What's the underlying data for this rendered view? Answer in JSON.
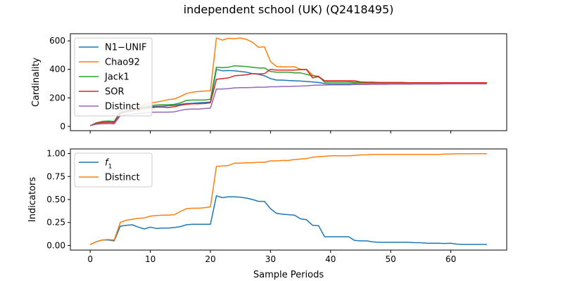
{
  "figure": {
    "title": "independent school (UK) (Q2418495)"
  },
  "chart_data": [
    {
      "type": "line",
      "ylabel": "Cardinality",
      "xlabel": "",
      "xlim": [
        -3.3,
        69.3
      ],
      "ylim": [
        -30,
        650
      ],
      "xticks": [
        0,
        10,
        20,
        30,
        40,
        50,
        60
      ],
      "yticks": [
        0,
        200,
        400,
        600
      ],
      "show_xtick_labels": false,
      "grid": false,
      "legend": "top-left",
      "series": [
        {
          "name": "N1−UNIF",
          "color": "#1f77b4",
          "x": [
            0,
            1,
            2,
            3,
            4,
            5,
            6,
            7,
            8,
            9,
            10,
            11,
            12,
            13,
            14,
            15,
            16,
            17,
            18,
            19,
            20,
            21,
            22,
            23,
            24,
            25,
            26,
            27,
            28,
            29,
            30,
            31,
            32,
            33,
            34,
            35,
            36,
            37,
            38,
            39,
            40,
            41,
            42,
            43,
            44,
            45,
            46,
            47,
            48,
            49,
            50,
            51,
            52,
            53,
            54,
            55,
            56,
            57,
            58,
            59,
            60,
            61,
            62,
            63,
            64,
            65,
            66
          ],
          "values": [
            5,
            18,
            20,
            22,
            20,
            90,
            100,
            108,
            120,
            130,
            138,
            140,
            142,
            145,
            148,
            155,
            160,
            162,
            165,
            168,
            170,
            400,
            390,
            392,
            390,
            385,
            380,
            370,
            365,
            355,
            335,
            325,
            325,
            322,
            320,
            318,
            315,
            312,
            308,
            300,
            298,
            298,
            298,
            298,
            300,
            300,
            300,
            300,
            300,
            300,
            300,
            300,
            300,
            300,
            300,
            300,
            300,
            300,
            300,
            300,
            300,
            300,
            300,
            300,
            300,
            300,
            300
          ]
        },
        {
          "name": "Chao92",
          "color": "#ff7f0e",
          "x": [
            0,
            1,
            2,
            3,
            4,
            5,
            6,
            7,
            8,
            9,
            10,
            11,
            12,
            13,
            14,
            15,
            16,
            17,
            18,
            19,
            20,
            21,
            22,
            23,
            24,
            25,
            26,
            27,
            28,
            29,
            30,
            31,
            32,
            33,
            34,
            35,
            36,
            37,
            38,
            39,
            40,
            41,
            42,
            43,
            44,
            45,
            46,
            47,
            48,
            49,
            50,
            51,
            52,
            53,
            54,
            55,
            56,
            57,
            58,
            59,
            60,
            61,
            62,
            63,
            64,
            65,
            66
          ],
          "values": [
            5,
            20,
            25,
            30,
            30,
            100,
            110,
            120,
            135,
            150,
            162,
            170,
            178,
            188,
            192,
            210,
            230,
            240,
            245,
            248,
            250,
            620,
            605,
            618,
            615,
            620,
            610,
            590,
            555,
            558,
            455,
            420,
            418,
            418,
            418,
            400,
            400,
            360,
            345,
            320,
            320,
            320,
            320,
            318,
            305,
            302,
            300,
            300,
            300,
            300,
            300,
            300,
            300,
            300,
            300,
            300,
            300,
            300,
            300,
            300,
            300,
            300,
            300,
            300,
            300,
            300,
            300
          ]
        },
        {
          "name": "Jack1",
          "color": "#2ca02c",
          "x": [
            0,
            1,
            2,
            3,
            4,
            5,
            6,
            7,
            8,
            9,
            10,
            11,
            12,
            13,
            14,
            15,
            16,
            17,
            18,
            19,
            20,
            21,
            22,
            23,
            24,
            25,
            26,
            27,
            28,
            29,
            30,
            31,
            32,
            33,
            34,
            35,
            36,
            37,
            38,
            39,
            40,
            41,
            42,
            43,
            44,
            45,
            46,
            47,
            48,
            49,
            50,
            51,
            52,
            53,
            54,
            55,
            56,
            57,
            58,
            59,
            60,
            61,
            62,
            63,
            64,
            65,
            66
          ],
          "values": [
            5,
            25,
            35,
            38,
            35,
            100,
            110,
            118,
            128,
            138,
            145,
            150,
            152,
            152,
            155,
            165,
            182,
            185,
            185,
            185,
            190,
            415,
            412,
            415,
            425,
            423,
            420,
            415,
            410,
            410,
            385,
            380,
            380,
            380,
            375,
            375,
            365,
            355,
            352,
            310,
            310,
            310,
            310,
            310,
            310,
            308,
            306,
            305,
            305,
            305,
            305,
            305,
            305,
            305,
            305,
            305,
            305,
            305,
            305,
            305,
            305,
            305,
            305,
            305,
            305,
            305,
            305
          ]
        },
        {
          "name": "SOR",
          "color": "#d62728",
          "x": [
            0,
            1,
            2,
            3,
            4,
            5,
            6,
            7,
            8,
            9,
            10,
            11,
            12,
            13,
            14,
            15,
            16,
            17,
            18,
            19,
            20,
            21,
            22,
            23,
            24,
            25,
            26,
            27,
            28,
            29,
            30,
            31,
            32,
            33,
            34,
            35,
            36,
            37,
            38,
            39,
            40,
            41,
            42,
            43,
            44,
            45,
            46,
            47,
            48,
            49,
            50,
            51,
            52,
            53,
            54,
            55,
            56,
            57,
            58,
            59,
            60,
            61,
            62,
            63,
            64,
            65,
            66
          ],
          "values": [
            5,
            22,
            28,
            30,
            28,
            95,
            105,
            112,
            118,
            125,
            130,
            135,
            135,
            132,
            138,
            148,
            155,
            158,
            158,
            160,
            165,
            330,
            335,
            340,
            355,
            358,
            362,
            370,
            368,
            370,
            400,
            395,
            395,
            395,
            395,
            398,
            398,
            340,
            350,
            320,
            320,
            320,
            320,
            320,
            320,
            312,
            310,
            310,
            308,
            308,
            308,
            308,
            308,
            306,
            306,
            306,
            306,
            306,
            306,
            306,
            306,
            306,
            306,
            306,
            306,
            306,
            306
          ]
        },
        {
          "name": "Distinct",
          "color": "#9467bd",
          "x": [
            0,
            1,
            2,
            3,
            4,
            5,
            6,
            7,
            8,
            9,
            10,
            11,
            12,
            13,
            14,
            15,
            16,
            17,
            18,
            19,
            20,
            21,
            22,
            23,
            24,
            25,
            26,
            27,
            28,
            29,
            30,
            31,
            32,
            33,
            34,
            35,
            36,
            37,
            38,
            39,
            40,
            41,
            42,
            43,
            44,
            45,
            46,
            47,
            48,
            49,
            50,
            51,
            52,
            53,
            54,
            55,
            56,
            57,
            58,
            59,
            60,
            61,
            62,
            63,
            64,
            65,
            66
          ],
          "values": [
            5,
            15,
            18,
            20,
            18,
            75,
            82,
            85,
            90,
            95,
            98,
            100,
            100,
            100,
            102,
            112,
            120,
            122,
            122,
            125,
            128,
            262,
            262,
            265,
            270,
            272,
            272,
            273,
            275,
            275,
            278,
            278,
            280,
            280,
            282,
            283,
            285,
            288,
            290,
            290,
            292,
            292,
            292,
            292,
            294,
            294,
            294,
            295,
            295,
            295,
            296,
            296,
            296,
            296,
            297,
            297,
            297,
            297,
            297,
            298,
            298,
            298,
            298,
            298,
            298,
            298,
            298
          ]
        }
      ]
    },
    {
      "type": "line",
      "ylabel": "Indicators",
      "xlabel": "Sample Periods",
      "xlim": [
        -3.3,
        69.3
      ],
      "ylim": [
        -0.05,
        1.05
      ],
      "xticks": [
        0,
        10,
        20,
        30,
        40,
        50,
        60
      ],
      "yticks": [
        0.0,
        0.25,
        0.5,
        0.75,
        1.0
      ],
      "ytick_labels": [
        "0.00",
        "0.25",
        "0.50",
        "0.75",
        "1.00"
      ],
      "show_xtick_labels": true,
      "grid": false,
      "legend": "top-left",
      "series": [
        {
          "name": "f",
          "name_subscript": "1",
          "color": "#1f77b4",
          "x": [
            0,
            1,
            2,
            3,
            4,
            5,
            6,
            7,
            8,
            9,
            10,
            11,
            12,
            13,
            14,
            15,
            16,
            17,
            18,
            19,
            20,
            21,
            22,
            23,
            24,
            25,
            26,
            27,
            28,
            29,
            30,
            31,
            32,
            33,
            34,
            35,
            36,
            37,
            38,
            39,
            40,
            41,
            42,
            43,
            44,
            45,
            46,
            47,
            48,
            49,
            50,
            51,
            52,
            53,
            54,
            55,
            56,
            57,
            58,
            59,
            60,
            61,
            62,
            63,
            64,
            65,
            66
          ],
          "values": [
            0.01,
            0.04,
            0.06,
            0.06,
            0.05,
            0.21,
            0.22,
            0.225,
            0.2,
            0.18,
            0.2,
            0.185,
            0.19,
            0.19,
            0.195,
            0.205,
            0.225,
            0.23,
            0.23,
            0.23,
            0.23,
            0.54,
            0.52,
            0.53,
            0.53,
            0.525,
            0.515,
            0.5,
            0.48,
            0.48,
            0.4,
            0.35,
            0.34,
            0.335,
            0.33,
            0.29,
            0.28,
            0.22,
            0.215,
            0.095,
            0.095,
            0.095,
            0.095,
            0.095,
            0.055,
            0.05,
            0.05,
            0.04,
            0.035,
            0.035,
            0.035,
            0.035,
            0.035,
            0.035,
            0.03,
            0.03,
            0.025,
            0.025,
            0.025,
            0.022,
            0.025,
            0.015,
            0.012,
            0.012,
            0.012,
            0.012,
            0.012
          ]
        },
        {
          "name": "Distinct",
          "color": "#ff7f0e",
          "x": [
            0,
            1,
            2,
            3,
            4,
            5,
            6,
            7,
            8,
            9,
            10,
            11,
            12,
            13,
            14,
            15,
            16,
            17,
            18,
            19,
            20,
            21,
            22,
            23,
            24,
            25,
            26,
            27,
            28,
            29,
            30,
            31,
            32,
            33,
            34,
            35,
            36,
            37,
            38,
            39,
            40,
            41,
            42,
            43,
            44,
            45,
            46,
            47,
            48,
            49,
            50,
            51,
            52,
            53,
            54,
            55,
            56,
            57,
            58,
            59,
            60,
            61,
            62,
            63,
            64,
            65,
            66
          ],
          "values": [
            0.01,
            0.04,
            0.06,
            0.065,
            0.06,
            0.25,
            0.275,
            0.285,
            0.295,
            0.3,
            0.32,
            0.325,
            0.33,
            0.33,
            0.335,
            0.37,
            0.4,
            0.405,
            0.405,
            0.41,
            0.42,
            0.86,
            0.865,
            0.87,
            0.895,
            0.895,
            0.9,
            0.9,
            0.905,
            0.905,
            0.92,
            0.92,
            0.925,
            0.925,
            0.935,
            0.94,
            0.945,
            0.96,
            0.965,
            0.97,
            0.975,
            0.975,
            0.975,
            0.975,
            0.98,
            0.985,
            0.985,
            0.99,
            0.99,
            0.99,
            0.99,
            0.99,
            0.99,
            0.99,
            0.99,
            0.99,
            0.99,
            0.99,
            0.99,
            0.995,
            0.995,
            0.997,
            0.997,
            0.997,
            0.998,
            0.998,
            0.998
          ]
        }
      ]
    }
  ]
}
